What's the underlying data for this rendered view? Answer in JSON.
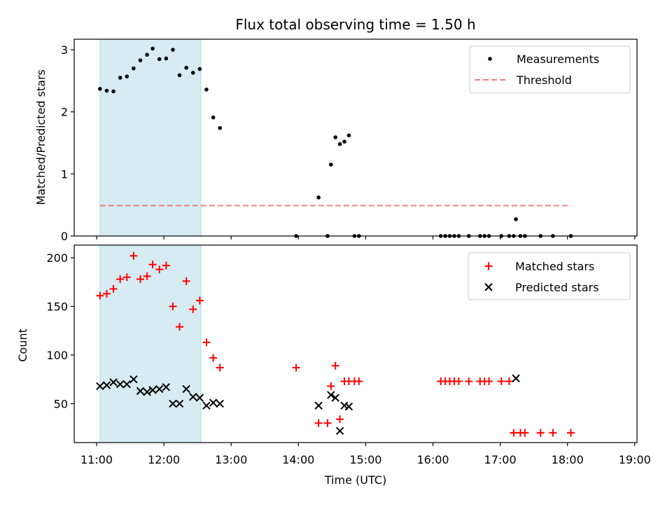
{
  "chart_data": [
    {
      "type": "scatter",
      "title": "Flux total observing time = 1.50 h",
      "xlabel": "",
      "ylabel": "Matched/Predicted stars",
      "xlim": [
        "10:40",
        "19:02"
      ],
      "ylim": [
        0,
        3.17
      ],
      "yticks": [
        0,
        1,
        2,
        3
      ],
      "legend_position": "top-right",
      "shaded_interval": {
        "start": "11:03",
        "end": "12:33",
        "color": "#add8e6"
      },
      "series": [
        {
          "name": "Measurements",
          "marker": "dot",
          "color": "#000000",
          "points": [
            [
              "11:03",
              2.37
            ],
            [
              "11:09",
              2.34
            ],
            [
              "11:15",
              2.33
            ],
            [
              "11:21",
              2.55
            ],
            [
              "11:27",
              2.57
            ],
            [
              "11:33",
              2.7
            ],
            [
              "11:39",
              2.83
            ],
            [
              "11:45",
              2.92
            ],
            [
              "11:50",
              3.02
            ],
            [
              "11:56",
              2.85
            ],
            [
              "12:02",
              2.86
            ],
            [
              "12:08",
              3.0
            ],
            [
              "12:14",
              2.59
            ],
            [
              "12:20",
              2.71
            ],
            [
              "12:26",
              2.63
            ],
            [
              "12:32",
              2.69
            ],
            [
              "12:38",
              2.36
            ],
            [
              "12:44",
              1.91
            ],
            [
              "12:50",
              1.74
            ],
            [
              "13:58",
              0
            ],
            [
              "14:18",
              0.62
            ],
            [
              "14:26",
              0
            ],
            [
              "14:29",
              1.15
            ],
            [
              "14:33",
              1.59
            ],
            [
              "14:37",
              1.48
            ],
            [
              "14:41",
              1.52
            ],
            [
              "14:45",
              1.62
            ],
            [
              "14:50",
              0
            ],
            [
              "14:54",
              0
            ],
            [
              "16:07",
              0
            ],
            [
              "16:11",
              0
            ],
            [
              "16:15",
              0
            ],
            [
              "16:19",
              0
            ],
            [
              "16:23",
              0
            ],
            [
              "16:32",
              0
            ],
            [
              "16:42",
              0
            ],
            [
              "16:46",
              0
            ],
            [
              "16:50",
              0
            ],
            [
              "17:01",
              0
            ],
            [
              "17:08",
              0
            ],
            [
              "17:12",
              0
            ],
            [
              "17:14",
              0.27
            ],
            [
              "17:18",
              0
            ],
            [
              "17:22",
              0
            ],
            [
              "17:36",
              0
            ],
            [
              "17:47",
              0
            ],
            [
              "18:03",
              0
            ]
          ]
        },
        {
          "name": "Threshold",
          "marker": "dashed-line",
          "color": "#f08080",
          "points": [
            [
              "11:03",
              0.49
            ],
            [
              "18:03",
              0.49
            ]
          ]
        }
      ]
    },
    {
      "type": "scatter",
      "title": "",
      "xlabel": "Time (UTC)",
      "ylabel": "Count",
      "xlim": [
        "10:40",
        "19:02"
      ],
      "ylim": [
        10,
        213
      ],
      "yticks": [
        50,
        100,
        150,
        200
      ],
      "xticks": [
        "11:00",
        "12:00",
        "13:00",
        "14:00",
        "15:00",
        "16:00",
        "17:00",
        "18:00",
        "19:00"
      ],
      "legend_position": "top-right",
      "shaded_interval": {
        "start": "11:03",
        "end": "12:33",
        "color": "#add8e6"
      },
      "series": [
        {
          "name": "Matched stars",
          "marker": "plus",
          "color": "#ff0000",
          "points": [
            [
              "11:03",
              161
            ],
            [
              "11:09",
              163
            ],
            [
              "11:15",
              168
            ],
            [
              "11:21",
              178
            ],
            [
              "11:27",
              180
            ],
            [
              "11:33",
              202
            ],
            [
              "11:39",
              178
            ],
            [
              "11:45",
              181
            ],
            [
              "11:50",
              193
            ],
            [
              "11:56",
              188
            ],
            [
              "12:02",
              192
            ],
            [
              "12:08",
              150
            ],
            [
              "12:14",
              129
            ],
            [
              "12:20",
              176
            ],
            [
              "12:26",
              147
            ],
            [
              "12:32",
              156
            ],
            [
              "12:38",
              113
            ],
            [
              "12:44",
              97
            ],
            [
              "12:50",
              87
            ],
            [
              "13:58",
              87
            ],
            [
              "14:18",
              30
            ],
            [
              "14:26",
              30
            ],
            [
              "14:29",
              68
            ],
            [
              "14:33",
              89
            ],
            [
              "14:37",
              34
            ],
            [
              "14:41",
              73
            ],
            [
              "14:45",
              73
            ],
            [
              "14:50",
              73
            ],
            [
              "14:54",
              73
            ],
            [
              "16:07",
              73
            ],
            [
              "16:11",
              73
            ],
            [
              "16:15",
              73
            ],
            [
              "16:19",
              73
            ],
            [
              "16:23",
              73
            ],
            [
              "16:32",
              73
            ],
            [
              "16:42",
              73
            ],
            [
              "16:46",
              73
            ],
            [
              "16:50",
              73
            ],
            [
              "17:01",
              73
            ],
            [
              "17:08",
              73
            ],
            [
              "17:12",
              20
            ],
            [
              "17:18",
              20
            ],
            [
              "17:22",
              20
            ],
            [
              "17:36",
              20
            ],
            [
              "17:47",
              20
            ],
            [
              "18:03",
              20
            ]
          ]
        },
        {
          "name": "Predicted stars",
          "marker": "x",
          "color": "#000000",
          "points": [
            [
              "11:03",
              68
            ],
            [
              "11:09",
              69
            ],
            [
              "11:15",
              72
            ],
            [
              "11:21",
              70
            ],
            [
              "11:27",
              70
            ],
            [
              "11:33",
              75
            ],
            [
              "11:39",
              63
            ],
            [
              "11:45",
              62
            ],
            [
              "11:50",
              64
            ],
            [
              "11:56",
              65
            ],
            [
              "12:02",
              67
            ],
            [
              "12:08",
              50
            ],
            [
              "12:14",
              50
            ],
            [
              "12:20",
              65
            ],
            [
              "12:26",
              57
            ],
            [
              "12:32",
              56
            ],
            [
              "12:38",
              48
            ],
            [
              "12:44",
              51
            ],
            [
              "12:50",
              50
            ],
            [
              "14:18",
              48
            ],
            [
              "14:29",
              59
            ],
            [
              "14:33",
              56
            ],
            [
              "14:37",
              22
            ],
            [
              "14:41",
              48
            ],
            [
              "14:45",
              47
            ],
            [
              "17:14",
              76
            ]
          ]
        }
      ]
    }
  ]
}
